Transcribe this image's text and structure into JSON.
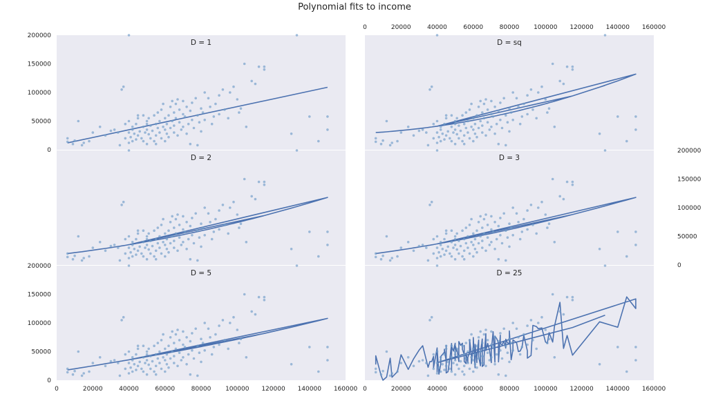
{
  "title": "Polynomial fits to income",
  "chart_data": {
    "type": "scatter",
    "title": "Polynomial fits to income",
    "xlim": [
      0,
      160000
    ],
    "ylim": [
      0,
      200000
    ],
    "x_ticks": [
      0,
      20000,
      40000,
      60000,
      80000,
      100000,
      120000,
      140000,
      160000
    ],
    "y_ticks": [
      0,
      50000,
      100000,
      150000,
      200000
    ],
    "grid": false,
    "layout": "3x2 panels",
    "scatter": {
      "x": [
        6000,
        6000,
        9000,
        10000,
        12000,
        14000,
        15000,
        18000,
        20000,
        24000,
        27000,
        30000,
        32000,
        34000,
        35000,
        36000,
        37000,
        38000,
        38000,
        40000,
        40000,
        40000,
        41000,
        42000,
        42000,
        42000,
        43000,
        44000,
        44000,
        45000,
        45000,
        45000,
        46000,
        47000,
        48000,
        48000,
        48000,
        49000,
        50000,
        50000,
        50000,
        50000,
        51000,
        51000,
        52000,
        52000,
        53000,
        54000,
        54000,
        55000,
        55000,
        55000,
        56000,
        56000,
        57000,
        57000,
        58000,
        58000,
        59000,
        59000,
        60000,
        60000,
        60000,
        61000,
        61000,
        62000,
        62000,
        63000,
        63000,
        64000,
        64000,
        65000,
        65000,
        65000,
        66000,
        66000,
        67000,
        67000,
        68000,
        68000,
        69000,
        70000,
        70000,
        70000,
        71000,
        72000,
        72000,
        73000,
        74000,
        74000,
        75000,
        75000,
        76000,
        77000,
        78000,
        78000,
        79000,
        80000,
        80000,
        81000,
        82000,
        82000,
        84000,
        85000,
        86000,
        87000,
        88000,
        90000,
        90000,
        92000,
        93000,
        95000,
        96000,
        98000,
        100000,
        101000,
        102000,
        104000,
        105000,
        108000,
        110000,
        112000,
        115000,
        130000,
        140000,
        145000,
        150000,
        150000,
        40000,
        115000,
        133000
      ],
      "y": [
        14000,
        20000,
        10000,
        16000,
        50000,
        8000,
        12000,
        15000,
        30000,
        40000,
        25000,
        33000,
        35000,
        30000,
        8000,
        105000,
        110000,
        20000,
        45000,
        12000,
        30000,
        50000,
        22000,
        35000,
        15000,
        40000,
        28000,
        18000,
        45000,
        25000,
        55000,
        60000,
        32000,
        20000,
        40000,
        15000,
        60000,
        30000,
        45000,
        10000,
        35000,
        50000,
        27000,
        55000,
        20000,
        42000,
        33000,
        15000,
        60000,
        25000,
        45000,
        10000,
        38000,
        65000,
        30000,
        50000,
        20000,
        70000,
        40000,
        80000,
        35000,
        55000,
        15000,
        45000,
        28000,
        60000,
        22000,
        75000,
        38000,
        50000,
        85000,
        42000,
        65000,
        30000,
        55000,
        80000,
        25000,
        88000,
        48000,
        70000,
        35000,
        62000,
        85000,
        40000,
        58000,
        28000,
        75000,
        45000,
        68000,
        10000,
        52000,
        82000,
        38000,
        90000,
        60000,
        8000,
        48000,
        72000,
        32000,
        65000,
        100000,
        52000,
        90000,
        75000,
        45000,
        58000,
        80000,
        95000,
        62000,
        105000,
        70000,
        55000,
        100000,
        110000,
        88000,
        65000,
        72000,
        150000,
        40000,
        120000,
        115000,
        145000,
        140000,
        28000,
        58000,
        15000,
        35000,
        58000,
        200000,
        145000,
        200000
      ]
    },
    "panels": [
      {
        "label": "D = 1",
        "degree": 1
      },
      {
        "label": "D = sq",
        "degree": "sq"
      },
      {
        "label": "D = 2",
        "degree": 2
      },
      {
        "label": "D = 3",
        "degree": 3
      },
      {
        "label": "D = 5",
        "degree": 5
      },
      {
        "label": "D = 25",
        "degree": 25
      }
    ],
    "colors": {
      "background": "#eaeaf2",
      "line": "#4c72b0",
      "points": "#6f9bc8"
    }
  }
}
